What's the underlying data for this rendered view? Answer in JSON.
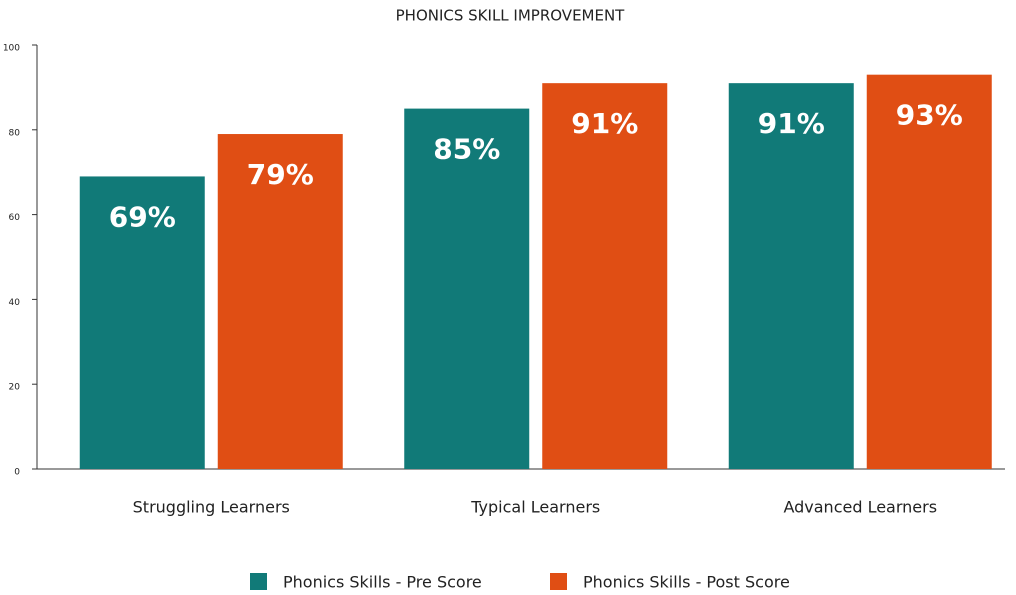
{
  "chart_data": {
    "type": "bar",
    "title": "PHONICS SKILL IMPROVEMENT",
    "categories": [
      "Struggling Learners",
      "Typical Learners",
      "Advanced Learners"
    ],
    "series": [
      {
        "name": "Phonics Skills - Pre Score",
        "color": "#117a78",
        "values": [
          69,
          85,
          91
        ],
        "value_labels": [
          "69%",
          "85%",
          "91%"
        ]
      },
      {
        "name": "Phonics Skills - Post Score",
        "color": "#e04e14",
        "values": [
          79,
          91,
          93
        ],
        "value_labels": [
          "79%",
          "91%",
          "93%"
        ]
      }
    ],
    "ylim": [
      0,
      100
    ],
    "yticks": [
      0,
      20,
      40,
      60,
      80,
      100
    ],
    "legend": "bottom"
  }
}
